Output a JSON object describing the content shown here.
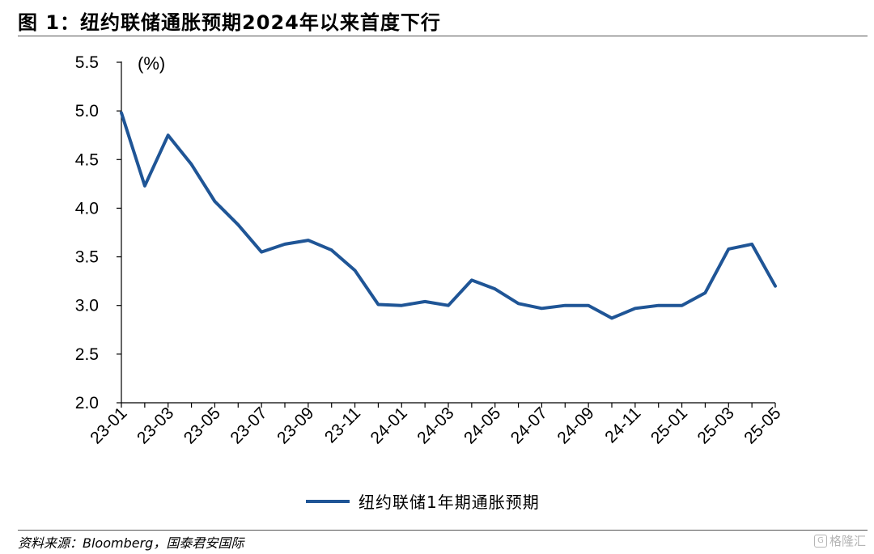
{
  "header": {
    "title": "图 1：纽约联储通胀预期2024年以来首度下行"
  },
  "footer": {
    "source": "资料来源：Bloomberg，国泰君安国际",
    "watermark": "格隆汇"
  },
  "chart_data": {
    "type": "line",
    "title": "图 1：纽约联储通胀预期2024年以来首度下行",
    "ylabel": "(%)",
    "xlabel": "",
    "ylim": [
      2.0,
      5.5
    ],
    "yticks": [
      "2.0",
      "2.5",
      "3.0",
      "3.5",
      "4.0",
      "4.5",
      "5.0",
      "5.5"
    ],
    "x": [
      "23-01",
      "23-02",
      "23-03",
      "23-04",
      "23-05",
      "23-06",
      "23-07",
      "23-08",
      "23-09",
      "23-10",
      "23-11",
      "23-12",
      "24-01",
      "24-02",
      "24-03",
      "24-04",
      "24-05",
      "24-06",
      "24-07",
      "24-08",
      "24-09",
      "24-10",
      "24-11",
      "24-12",
      "25-01",
      "25-02",
      "25-03",
      "25-04",
      "25-05"
    ],
    "xticks": [
      "23-01",
      "23-03",
      "23-05",
      "23-07",
      "23-09",
      "23-11",
      "24-01",
      "24-03",
      "24-05",
      "24-07",
      "24-09",
      "24-11",
      "25-01",
      "25-03",
      "25-05"
    ],
    "series": [
      {
        "name": "纽约联储1年期通胀预期",
        "color": "#1F5596",
        "values": [
          4.98,
          4.23,
          4.75,
          4.45,
          4.07,
          3.83,
          3.55,
          3.63,
          3.67,
          3.57,
          3.36,
          3.01,
          3.0,
          3.04,
          3.0,
          3.26,
          3.17,
          3.02,
          2.97,
          3.0,
          3.0,
          2.87,
          2.97,
          3.0,
          3.0,
          3.13,
          3.58,
          3.63,
          3.2
        ]
      }
    ],
    "grid": false,
    "legend_position": "bottom"
  }
}
